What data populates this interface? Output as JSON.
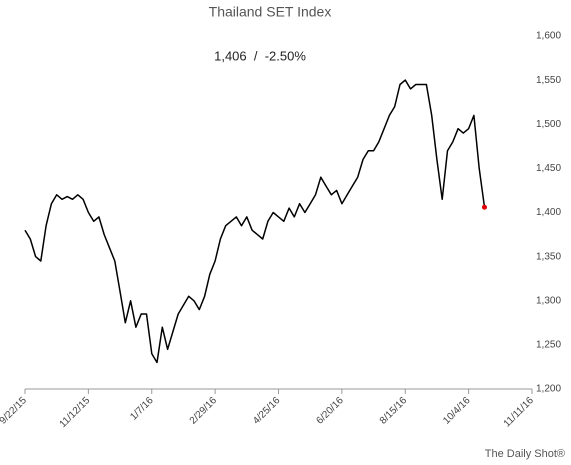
{
  "chart_data": {
    "type": "line",
    "title": "Thailand SET Index",
    "annotation": "1,406  /  -2.50%",
    "source": "The Daily Shot®",
    "categories": [
      "9/22/15",
      null,
      null,
      null,
      null,
      null,
      null,
      null,
      null,
      null,
      null,
      null,
      "11/12/15",
      null,
      null,
      null,
      null,
      null,
      null,
      null,
      null,
      null,
      null,
      null,
      "1/7/16",
      null,
      null,
      null,
      null,
      null,
      null,
      null,
      null,
      null,
      null,
      null,
      "2/29/16",
      null,
      null,
      null,
      null,
      null,
      null,
      null,
      null,
      null,
      null,
      null,
      "4/25/16",
      null,
      null,
      null,
      null,
      null,
      null,
      null,
      null,
      null,
      null,
      null,
      "6/20/16",
      null,
      null,
      null,
      null,
      null,
      null,
      null,
      null,
      null,
      null,
      null,
      "8/15/16",
      null,
      null,
      null,
      null,
      null,
      null,
      null,
      null,
      null,
      null,
      null,
      "10/4/16",
      null,
      null,
      null,
      null,
      null,
      null,
      null,
      null,
      null,
      null,
      null,
      "11/11/16"
    ],
    "series": [
      {
        "name": "Thailand SET Index",
        "color": "#000000",
        "values": [
          1380,
          1370,
          1350,
          1345,
          1385,
          1410,
          1420,
          1415,
          1418,
          1415,
          1420,
          1415,
          1400,
          1390,
          1395,
          1375,
          1360,
          1345,
          1310,
          1275,
          1300,
          1270,
          1285,
          1285,
          1240,
          1230,
          1270,
          1245,
          1265,
          1285,
          1295,
          1305,
          1300,
          1290,
          1305,
          1330,
          1345,
          1370,
          1385,
          1390,
          1395,
          1385,
          1395,
          1380,
          1375,
          1370,
          1390,
          1400,
          1395,
          1390,
          1405,
          1395,
          1410,
          1400,
          1410,
          1420,
          1440,
          1430,
          1420,
          1425,
          1410,
          1420,
          1430,
          1440,
          1460,
          1470,
          1470,
          1480,
          1495,
          1510,
          1520,
          1545,
          1550,
          1540,
          1545,
          1545,
          1545,
          1510,
          1460,
          1415,
          1470,
          1480,
          1495,
          1490,
          1495,
          1510,
          1450,
          1406,
          null,
          null,
          null,
          null,
          null,
          null,
          null,
          null,
          null
        ]
      }
    ],
    "last_marker_color": "#e00000",
    "ylim": [
      1200,
      1600
    ],
    "yticks": [
      {
        "value": 1200,
        "label": "1,200"
      },
      {
        "value": 1250,
        "label": "1,250"
      },
      {
        "value": 1300,
        "label": "1,300"
      },
      {
        "value": 1350,
        "label": "1,350"
      },
      {
        "value": 1400,
        "label": "1,400"
      },
      {
        "value": 1450,
        "label": "1,450"
      },
      {
        "value": 1500,
        "label": "1,500"
      },
      {
        "value": 1550,
        "label": "1,550"
      },
      {
        "value": 1600,
        "label": "1,600"
      }
    ],
    "grid": false
  }
}
